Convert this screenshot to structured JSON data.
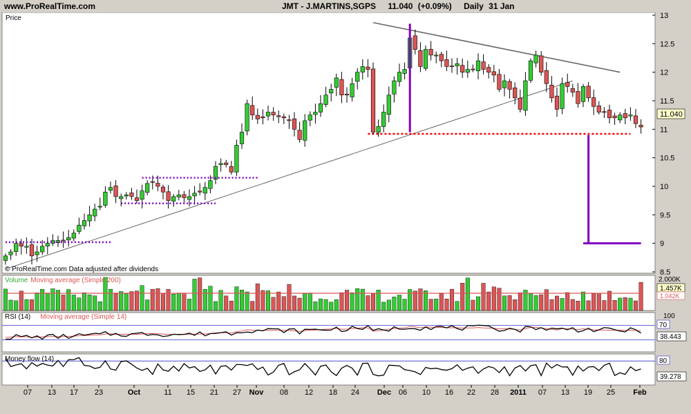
{
  "header": {
    "site": "www.ProRealTime.com",
    "symbol": "JMT - J.MARTINS,SGPS",
    "last": "11.040",
    "change": "(+0.09%)",
    "period": "Daily",
    "date": "31 Jan"
  },
  "price_panel": {
    "label": "Price",
    "footer": "© ProRealTime.com  Data adjusted after dividends",
    "last_tag": "11.040"
  },
  "volume_panel": {
    "label": "Volume",
    "ma_label": "Moving average (Simple 200)",
    "axis_top": "2.000K",
    "tag_value": "1.457K",
    "tag_ma": "1.042K"
  },
  "rsi_panel": {
    "label": "RSI (14)",
    "ma_label": "Moving average (Simple 14)",
    "axis_top": "100",
    "level": "70",
    "tag_value": "38.443"
  },
  "mf_panel": {
    "label": "Money flow (14)",
    "level": "80",
    "tag_value": "39.278"
  },
  "x_ticks": [
    "07",
    "13",
    "17",
    "23",
    "Oct",
    "11",
    "15",
    "21",
    "27",
    "Nov",
    "08",
    "12",
    "18",
    "24",
    "Dec",
    "06",
    "10",
    "16",
    "22",
    "28",
    "2011",
    "07",
    "13",
    "19",
    "25",
    "Feb"
  ],
  "colors": {
    "up": "#33cc33",
    "down": "#dd5555",
    "bg": "#ffffff",
    "frame": "#d4d0c8",
    "purple": "#8000c0",
    "support": "#ff0000"
  },
  "chart_data": {
    "type": "candlestick",
    "price_axis": {
      "ticks": [
        "8.5",
        "9",
        "9.5",
        "10",
        "10.5",
        "11",
        "11.5",
        "12",
        "12.5",
        "13"
      ],
      "ylim": [
        8.5,
        13
      ]
    },
    "x_ticks": [
      "07",
      "13",
      "17",
      "23",
      "Oct",
      "11",
      "15",
      "21",
      "27",
      "Nov",
      "08",
      "12",
      "18",
      "24",
      "Dec",
      "06",
      "10",
      "16",
      "22",
      "28",
      "2011",
      "07",
      "13",
      "19",
      "25",
      "Feb"
    ],
    "close": [
      8.78,
      8.85,
      9.0,
      8.95,
      8.95,
      8.78,
      8.85,
      8.95,
      9.0,
      9.05,
      9.05,
      9.05,
      9.1,
      9.18,
      9.32,
      9.4,
      9.5,
      9.6,
      9.65,
      9.9,
      9.98,
      9.82,
      9.82,
      9.85,
      9.82,
      9.75,
      9.92,
      10.05,
      10.08,
      10.0,
      9.9,
      9.75,
      9.82,
      9.85,
      9.8,
      9.82,
      9.88,
      9.9,
      9.98,
      10.1,
      10.35,
      10.4,
      10.38,
      10.25,
      10.72,
      10.95,
      11.45,
      11.25,
      11.18,
      11.2,
      11.3,
      11.25,
      11.22,
      11.2,
      11.15,
      11.0,
      10.82,
      11.15,
      11.25,
      11.3,
      11.45,
      11.6,
      11.7,
      11.9,
      11.6,
      11.6,
      11.8,
      12.0,
      12.1,
      12.05,
      10.95,
      11.05,
      11.3,
      11.6,
      11.85,
      12.0,
      12.05,
      12.6,
      12.4,
      12.1,
      12.4,
      12.3,
      12.3,
      12.2,
      12.1,
      12.1,
      12.15,
      12.0,
      12.05,
      12.05,
      12.2,
      12.05,
      12.0,
      11.95,
      11.7,
      11.85,
      11.7,
      11.55,
      11.35,
      11.85,
      12.2,
      12.3,
      12.0,
      11.8,
      11.55,
      11.35,
      11.8,
      11.75,
      11.65,
      11.45,
      11.75,
      11.55,
      11.4,
      11.3,
      11.3,
      11.2,
      11.2,
      11.25,
      11.2,
      11.25,
      11.1,
      11.04
    ],
    "trendlines": [
      {
        "name": "rising support",
        "from": [
          0,
          8.55
        ],
        "to": [
          108,
          11.85
        ]
      },
      {
        "name": "falling resistance",
        "from": [
          70,
          12.87
        ],
        "to": [
          117,
          12.0
        ]
      },
      {
        "name": "horizontal support",
        "value": 10.92
      }
    ],
    "volume": {
      "axis_top": "2.000K",
      "last": "1.457K",
      "ma": "1.042K"
    },
    "rsi": {
      "period": 14,
      "ma_period": 14,
      "last": 38.443,
      "levels": [
        70
      ]
    },
    "money_flow": {
      "period": 14,
      "last": 39.278,
      "levels": [
        80
      ]
    }
  }
}
